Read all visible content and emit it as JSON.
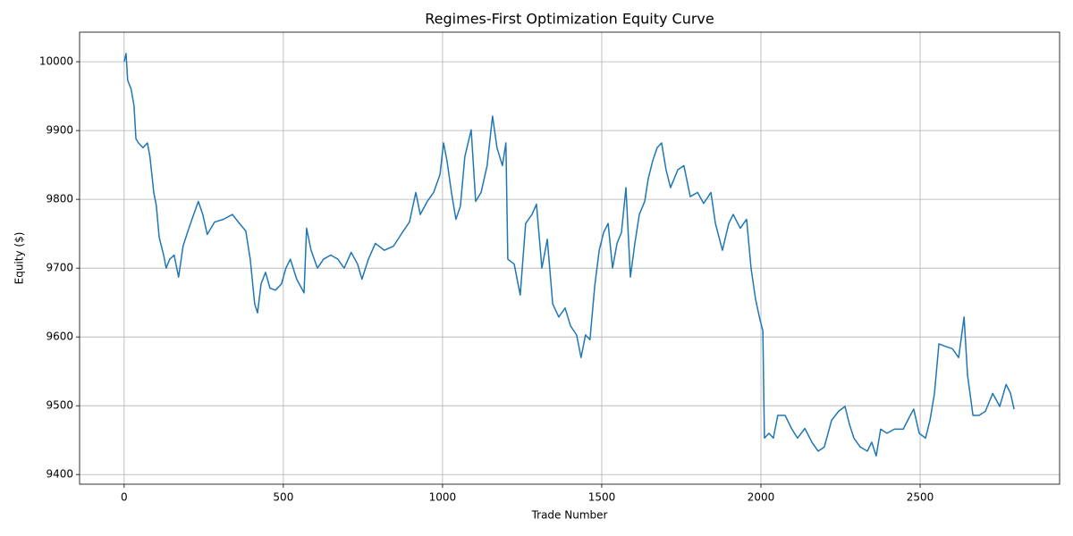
{
  "chart_data": {
    "type": "line",
    "title": "Regimes-First Optimization Equity Curve",
    "x_label": "Trade Number",
    "y_label": "Equity ($)",
    "color": "#1f77b4",
    "grid": true,
    "xlim": [
      -140,
      2938
    ],
    "ylim": [
      9386,
      10043
    ],
    "xticks": [
      0,
      500,
      1000,
      1500,
      2000,
      2500
    ],
    "yticks": [
      9400,
      9500,
      9600,
      9700,
      9800,
      9900,
      10000
    ],
    "x": [
      0,
      6,
      11,
      22,
      31,
      37,
      45,
      59,
      73,
      81,
      93,
      101,
      110,
      124,
      132,
      143,
      157,
      171,
      185,
      199,
      213,
      233,
      247,
      261,
      284,
      312,
      340,
      362,
      382,
      396,
      410,
      419,
      430,
      444,
      458,
      475,
      494,
      508,
      522,
      542,
      565,
      573,
      587,
      607,
      626,
      649,
      671,
      691,
      713,
      733,
      747,
      767,
      789,
      817,
      846,
      874,
      896,
      916,
      930,
      952,
      972,
      992,
      1003,
      1014,
      1028,
      1042,
      1056,
      1070,
      1090,
      1104,
      1121,
      1140,
      1157,
      1171,
      1188,
      1199,
      1205,
      1225,
      1244,
      1261,
      1281,
      1295,
      1312,
      1329,
      1346,
      1365,
      1385,
      1402,
      1421,
      1435,
      1449,
      1463,
      1478,
      1492,
      1506,
      1520,
      1534,
      1548,
      1562,
      1576,
      1590,
      1604,
      1618,
      1635,
      1646,
      1660,
      1674,
      1688,
      1702,
      1716,
      1739,
      1758,
      1778,
      1801,
      1820,
      1843,
      1857,
      1879,
      1899,
      1913,
      1935,
      1955,
      1969,
      1983,
      1997,
      2006,
      2011,
      2025,
      2039,
      2053,
      2076,
      2096,
      2115,
      2138,
      2160,
      2180,
      2199,
      2222,
      2244,
      2264,
      2278,
      2292,
      2312,
      2334,
      2348,
      2362,
      2376,
      2396,
      2419,
      2447,
      2469,
      2480,
      2497,
      2517,
      2531,
      2545,
      2559,
      2581,
      2601,
      2621,
      2638,
      2649,
      2666,
      2685,
      2705,
      2728,
      2750,
      2770,
      2784,
      2795
    ],
    "values": [
      10000,
      10012,
      9973,
      9960,
      9936,
      9888,
      9882,
      9875,
      9882,
      9862,
      9810,
      9791,
      9745,
      9719,
      9700,
      9713,
      9719,
      9687,
      9732,
      9752,
      9771,
      9797,
      9778,
      9749,
      9767,
      9771,
      9778,
      9765,
      9754,
      9713,
      9648,
      9635,
      9677,
      9694,
      9671,
      9668,
      9677,
      9700,
      9713,
      9684,
      9664,
      9758,
      9726,
      9700,
      9713,
      9719,
      9713,
      9700,
      9723,
      9706,
      9684,
      9713,
      9736,
      9726,
      9732,
      9752,
      9767,
      9810,
      9778,
      9797,
      9810,
      9836,
      9882,
      9856,
      9810,
      9771,
      9790,
      9862,
      9901,
      9797,
      9810,
      9849,
      9921,
      9875,
      9849,
      9882,
      9713,
      9706,
      9661,
      9765,
      9778,
      9793,
      9700,
      9742,
      9648,
      9629,
      9642,
      9616,
      9603,
      9570,
      9603,
      9596,
      9674,
      9726,
      9752,
      9765,
      9700,
      9736,
      9752,
      9817,
      9687,
      9736,
      9778,
      9797,
      9830,
      9856,
      9875,
      9882,
      9843,
      9817,
      9843,
      9849,
      9804,
      9810,
      9794,
      9810,
      9765,
      9726,
      9765,
      9778,
      9758,
      9771,
      9700,
      9655,
      9625,
      9609,
      9453,
      9460,
      9453,
      9486,
      9486,
      9467,
      9453,
      9467,
      9447,
      9434,
      9440,
      9479,
      9492,
      9499,
      9473,
      9453,
      9440,
      9434,
      9447,
      9427,
      9466,
      9460,
      9466,
      9466,
      9486,
      9495,
      9460,
      9453,
      9479,
      9518,
      9590,
      9586,
      9583,
      9570,
      9629,
      9544,
      9486,
      9486,
      9492,
      9518,
      9499,
      9531,
      9518,
      9495
    ]
  }
}
